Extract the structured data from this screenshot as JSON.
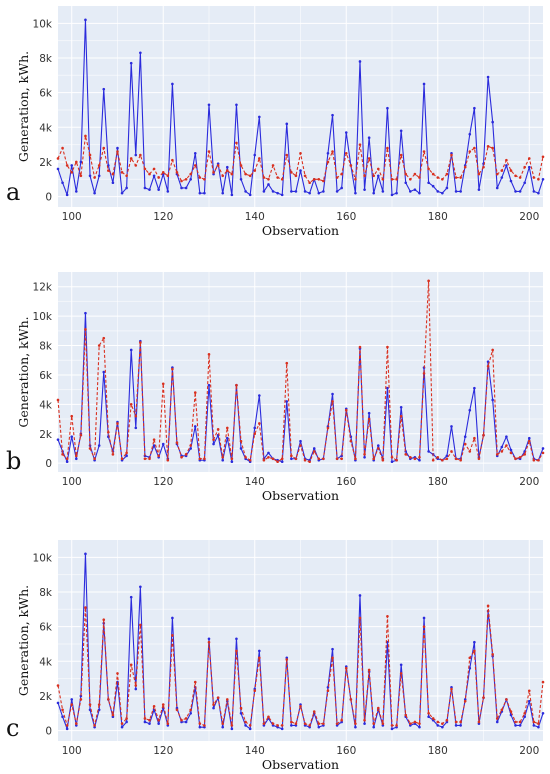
{
  "colors": {
    "actual": "#2b2bdc",
    "predicted": "#d9301f",
    "background": "#e5ecf6",
    "grid": "#ffffff"
  },
  "chart_data": [
    {
      "type": "line",
      "panel_label": "a",
      "xlabel": "Observation",
      "ylabel": "Generation, kWh.",
      "xlim": [
        97,
        203
      ],
      "ylim": [
        -600,
        11000
      ],
      "xticks": [
        100,
        120,
        140,
        160,
        180,
        200
      ],
      "xtick_labels": [
        "100",
        "120",
        "140",
        "160",
        "180",
        "200"
      ],
      "yticks": [
        0,
        2000,
        4000,
        6000,
        8000,
        10000
      ],
      "ytick_labels": [
        "0",
        "2k",
        "4k",
        "6k",
        "8k",
        "10k"
      ],
      "grid": true,
      "legend": "none",
      "x": [
        97,
        98,
        99,
        100,
        101,
        102,
        103,
        104,
        105,
        106,
        107,
        108,
        109,
        110,
        111,
        112,
        113,
        114,
        115,
        116,
        117,
        118,
        119,
        120,
        121,
        122,
        123,
        124,
        125,
        126,
        127,
        128,
        129,
        130,
        131,
        132,
        133,
        134,
        135,
        136,
        137,
        138,
        139,
        140,
        141,
        142,
        143,
        144,
        145,
        146,
        147,
        148,
        149,
        150,
        151,
        152,
        153,
        154,
        155,
        156,
        157,
        158,
        159,
        160,
        161,
        162,
        163,
        164,
        165,
        166,
        167,
        168,
        169,
        170,
        171,
        172,
        173,
        174,
        175,
        176,
        177,
        178,
        179,
        180,
        181,
        182,
        183,
        184,
        185,
        186,
        187,
        188,
        189,
        190,
        191,
        192,
        193,
        194,
        195,
        196,
        197,
        198,
        199,
        200,
        201,
        202,
        203
      ],
      "series": [
        {
          "style": "solid-markers",
          "values": [
            1600,
            800,
            100,
            1800,
            300,
            2000,
            10200,
            1200,
            200,
            1200,
            6200,
            1800,
            800,
            2800,
            200,
            500,
            7700,
            2400,
            8300,
            500,
            400,
            1200,
            400,
            1300,
            300,
            6500,
            1300,
            500,
            500,
            1000,
            2500,
            200,
            200,
            5300,
            1300,
            1900,
            200,
            1700,
            100,
            5300,
            1000,
            300,
            100,
            2400,
            4600,
            300,
            700,
            300,
            200,
            100,
            4200,
            300,
            300,
            1500,
            300,
            200,
            1000,
            200,
            300,
            2500,
            4700,
            300,
            500,
            3700,
            1800,
            200,
            7800,
            400,
            3400,
            200,
            1200,
            300,
            5100,
            100,
            200,
            3800,
            800,
            300,
            400,
            200,
            6500,
            800,
            600,
            300,
            200,
            500,
            2500,
            300,
            300,
            1800,
            3600,
            5100,
            400,
            1900,
            6900,
            4300,
            500,
            1100,
            1800,
            900,
            300,
            300,
            800,
            1700,
            300,
            200,
            1000
          ]
        },
        {
          "style": "dashed-markers",
          "values": [
            2200,
            2800,
            1800,
            1400,
            2000,
            1200,
            3500,
            2400,
            1100,
            1800,
            2800,
            1500,
            1300,
            2600,
            1400,
            1200,
            2200,
            1800,
            2400,
            1600,
            1300,
            1600,
            1100,
            1400,
            1200,
            2100,
            1400,
            900,
            1000,
            1300,
            1800,
            1100,
            1000,
            2600,
            1400,
            1800,
            1200,
            1500,
            1300,
            3100,
            1800,
            1300,
            1200,
            1500,
            2200,
            1100,
            1000,
            1800,
            1100,
            1000,
            2400,
            1400,
            1200,
            2500,
            1200,
            800,
            1000,
            1000,
            900,
            2000,
            2600,
            1100,
            1300,
            2500,
            1800,
            1000,
            3000,
            1200,
            2200,
            1200,
            1600,
            1000,
            2800,
            1000,
            1000,
            2400,
            1300,
            1000,
            1300,
            1100,
            2600,
            1600,
            1300,
            1100,
            1000,
            1300,
            2400,
            1100,
            1100,
            1700,
            2600,
            2800,
            1300,
            1700,
            2900,
            2800,
            1300,
            1500,
            2100,
            1500,
            1200,
            1100,
            1700,
            2200,
            1100,
            1000,
            2300
          ]
        }
      ]
    },
    {
      "type": "line",
      "panel_label": "b",
      "xlabel": "Observation",
      "ylabel": "Generation, kWh.",
      "xlim": [
        97,
        203
      ],
      "ylim": [
        -600,
        13000
      ],
      "xticks": [
        100,
        120,
        140,
        160,
        180,
        200
      ],
      "xtick_labels": [
        "100",
        "120",
        "140",
        "160",
        "180",
        "200"
      ],
      "yticks": [
        0,
        2000,
        4000,
        6000,
        8000,
        10000,
        12000
      ],
      "ytick_labels": [
        "0",
        "2k",
        "4k",
        "6k",
        "8k",
        "10k",
        "12k"
      ],
      "grid": true,
      "legend": "none",
      "x": [
        97,
        98,
        99,
        100,
        101,
        102,
        103,
        104,
        105,
        106,
        107,
        108,
        109,
        110,
        111,
        112,
        113,
        114,
        115,
        116,
        117,
        118,
        119,
        120,
        121,
        122,
        123,
        124,
        125,
        126,
        127,
        128,
        129,
        130,
        131,
        132,
        133,
        134,
        135,
        136,
        137,
        138,
        139,
        140,
        141,
        142,
        143,
        144,
        145,
        146,
        147,
        148,
        149,
        150,
        151,
        152,
        153,
        154,
        155,
        156,
        157,
        158,
        159,
        160,
        161,
        162,
        163,
        164,
        165,
        166,
        167,
        168,
        169,
        170,
        171,
        172,
        173,
        174,
        175,
        176,
        177,
        178,
        179,
        180,
        181,
        182,
        183,
        184,
        185,
        186,
        187,
        188,
        189,
        190,
        191,
        192,
        193,
        194,
        195,
        196,
        197,
        198,
        199,
        200,
        201,
        202,
        203
      ],
      "series": [
        {
          "style": "solid-markers",
          "values": [
            1600,
            800,
            100,
            1800,
            300,
            2000,
            10200,
            1200,
            200,
            1200,
            6200,
            1800,
            800,
            2800,
            200,
            500,
            7700,
            2400,
            8300,
            500,
            400,
            1200,
            400,
            1300,
            300,
            6500,
            1300,
            500,
            500,
            1000,
            2500,
            200,
            200,
            5300,
            1300,
            1900,
            200,
            1700,
            100,
            5300,
            1000,
            300,
            100,
            2400,
            4600,
            300,
            700,
            300,
            200,
            100,
            4200,
            300,
            300,
            1500,
            300,
            200,
            1000,
            200,
            300,
            2500,
            4700,
            300,
            500,
            3700,
            1800,
            200,
            7800,
            400,
            3400,
            200,
            1200,
            300,
            5100,
            100,
            200,
            3800,
            800,
            300,
            400,
            200,
            6500,
            800,
            600,
            300,
            200,
            500,
            2500,
            300,
            300,
            1800,
            3600,
            5100,
            400,
            1900,
            6900,
            4300,
            500,
            1100,
            1800,
            900,
            300,
            300,
            800,
            1700,
            300,
            200,
            1000
          ]
        },
        {
          "style": "dashed-markers",
          "values": [
            4300,
            600,
            300,
            3200,
            500,
            1900,
            9100,
            1000,
            300,
            8000,
            8500,
            2100,
            600,
            2700,
            300,
            700,
            4000,
            3200,
            8200,
            300,
            300,
            1600,
            500,
            5400,
            200,
            6400,
            1400,
            400,
            600,
            1200,
            4800,
            300,
            300,
            7400,
            1600,
            2300,
            400,
            2400,
            300,
            5300,
            1500,
            400,
            200,
            2000,
            2700,
            200,
            400,
            300,
            100,
            300,
            6800,
            500,
            300,
            1200,
            200,
            100,
            800,
            300,
            300,
            2400,
            4200,
            300,
            300,
            3600,
            1500,
            300,
            7900,
            600,
            3000,
            300,
            1000,
            200,
            7900,
            400,
            200,
            3200,
            600,
            400,
            300,
            400,
            6100,
            12400,
            200,
            400,
            200,
            300,
            800,
            300,
            200,
            1300,
            800,
            1700,
            300,
            1900,
            6600,
            7700,
            600,
            800,
            1200,
            700,
            300,
            400,
            600,
            1500,
            200,
            200,
            700
          ]
        }
      ]
    },
    {
      "type": "line",
      "panel_label": "c",
      "xlabel": "Observation",
      "ylabel": "Generation, kWh.",
      "xlim": [
        97,
        203
      ],
      "ylim": [
        -600,
        11000
      ],
      "xticks": [
        100,
        120,
        140,
        160,
        180,
        200
      ],
      "xtick_labels": [
        "100",
        "120",
        "140",
        "160",
        "180",
        "200"
      ],
      "yticks": [
        0,
        2000,
        4000,
        6000,
        8000,
        10000
      ],
      "ytick_labels": [
        "0",
        "2k",
        "4k",
        "6k",
        "8k",
        "10k"
      ],
      "grid": true,
      "legend": "none",
      "x": [
        97,
        98,
        99,
        100,
        101,
        102,
        103,
        104,
        105,
        106,
        107,
        108,
        109,
        110,
        111,
        112,
        113,
        114,
        115,
        116,
        117,
        118,
        119,
        120,
        121,
        122,
        123,
        124,
        125,
        126,
        127,
        128,
        129,
        130,
        131,
        132,
        133,
        134,
        135,
        136,
        137,
        138,
        139,
        140,
        141,
        142,
        143,
        144,
        145,
        146,
        147,
        148,
        149,
        150,
        151,
        152,
        153,
        154,
        155,
        156,
        157,
        158,
        159,
        160,
        161,
        162,
        163,
        164,
        165,
        166,
        167,
        168,
        169,
        170,
        171,
        172,
        173,
        174,
        175,
        176,
        177,
        178,
        179,
        180,
        181,
        182,
        183,
        184,
        185,
        186,
        187,
        188,
        189,
        190,
        191,
        192,
        193,
        194,
        195,
        196,
        197,
        198,
        199,
        200,
        201,
        202,
        203
      ],
      "series": [
        {
          "style": "solid-markers",
          "values": [
            1600,
            800,
            100,
            1800,
            300,
            2000,
            10200,
            1200,
            200,
            1200,
            6200,
            1800,
            800,
            2800,
            200,
            500,
            7700,
            2400,
            8300,
            500,
            400,
            1200,
            400,
            1300,
            300,
            6500,
            1300,
            500,
            500,
            1000,
            2500,
            200,
            200,
            5300,
            1300,
            1900,
            200,
            1700,
            100,
            5300,
            1000,
            300,
            100,
            2400,
            4600,
            300,
            700,
            300,
            200,
            100,
            4200,
            300,
            300,
            1500,
            300,
            200,
            1000,
            200,
            300,
            2500,
            4700,
            300,
            500,
            3700,
            1800,
            200,
            7800,
            400,
            3400,
            200,
            1200,
            300,
            5100,
            100,
            200,
            3800,
            800,
            300,
            400,
            200,
            6500,
            800,
            600,
            300,
            200,
            500,
            2500,
            300,
            300,
            1800,
            3600,
            5100,
            400,
            1900,
            6900,
            4300,
            500,
            1100,
            1800,
            900,
            300,
            300,
            800,
            1700,
            300,
            200,
            1000
          ]
        },
        {
          "style": "dashed-markers",
          "values": [
            2600,
            1200,
            300,
            1500,
            400,
            1800,
            7100,
            1500,
            300,
            1500,
            6400,
            1800,
            900,
            3300,
            400,
            700,
            3800,
            2600,
            6100,
            700,
            600,
            1400,
            600,
            1500,
            400,
            5500,
            1200,
            600,
            700,
            1200,
            2800,
            400,
            300,
            5100,
            1500,
            1900,
            400,
            1800,
            300,
            4600,
            1300,
            500,
            300,
            2300,
            4200,
            400,
            800,
            400,
            300,
            300,
            4100,
            500,
            400,
            1400,
            400,
            300,
            1100,
            400,
            400,
            2300,
            4200,
            400,
            600,
            3600,
            1800,
            400,
            6500,
            600,
            3500,
            400,
            1300,
            400,
            6600,
            300,
            300,
            3300,
            900,
            400,
            500,
            400,
            6000,
            1000,
            700,
            500,
            400,
            600,
            2400,
            500,
            500,
            1700,
            4200,
            4600,
            500,
            1900,
            7200,
            4400,
            700,
            1200,
            1800,
            1100,
            500,
            500,
            1000,
            2300,
            500,
            400,
            2800
          ]
        }
      ]
    }
  ]
}
